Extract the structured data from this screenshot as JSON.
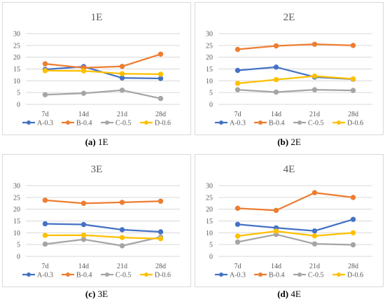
{
  "chart_data": [
    {
      "type": "line",
      "title": "1E",
      "caption_letter": "(a)",
      "caption_text": " 1E",
      "categories": [
        "7d",
        "14d",
        "21d",
        "28d"
      ],
      "ylim": [
        0,
        30
      ],
      "yticks": [
        "0",
        "5",
        "10",
        "15",
        "20",
        "25",
        "30"
      ],
      "grid": true,
      "legend_position": "bottom",
      "series": [
        {
          "name": "A-0.3",
          "color": "#4472C4",
          "values": [
            14.8,
            16.0,
            11.2,
            11.0
          ]
        },
        {
          "name": "B-0.4",
          "color": "#ED7D31",
          "values": [
            17.2,
            15.5,
            16.1,
            21.3
          ]
        },
        {
          "name": "C-0.5",
          "color": "#A5A5A5",
          "values": [
            4.1,
            4.7,
            6.0,
            2.5
          ]
        },
        {
          "name": "D-0.6",
          "color": "#FFC000",
          "values": [
            14.3,
            14.2,
            13.0,
            12.8
          ]
        }
      ]
    },
    {
      "type": "line",
      "title": "2E",
      "caption_letter": "(b)",
      "caption_text": " 2E",
      "categories": [
        "7d",
        "14d",
        "21d",
        "28d"
      ],
      "ylim": [
        0,
        30
      ],
      "yticks": [
        "0",
        "5",
        "10",
        "15",
        "20",
        "25",
        "30"
      ],
      "grid": true,
      "legend_position": "bottom",
      "series": [
        {
          "name": "A-0.3",
          "color": "#4472C4",
          "values": [
            14.4,
            15.8,
            11.6,
            10.7
          ]
        },
        {
          "name": "B-0.4",
          "color": "#ED7D31",
          "values": [
            23.3,
            24.8,
            25.5,
            25.0
          ]
        },
        {
          "name": "C-0.5",
          "color": "#A5A5A5",
          "values": [
            6.2,
            5.2,
            6.2,
            5.9
          ]
        },
        {
          "name": "D-0.6",
          "color": "#FFC000",
          "values": [
            8.9,
            10.5,
            12.0,
            10.8
          ]
        }
      ]
    },
    {
      "type": "line",
      "title": "3E",
      "caption_letter": "(c)",
      "caption_text": " 3E",
      "categories": [
        "7d",
        "14d",
        "21d",
        "28d"
      ],
      "ylim": [
        0,
        30
      ],
      "yticks": [
        "0",
        "5",
        "10",
        "15",
        "20",
        "25",
        "30"
      ],
      "grid": true,
      "legend_position": "bottom",
      "series": [
        {
          "name": "A-0.3",
          "color": "#4472C4",
          "values": [
            13.8,
            13.5,
            11.3,
            10.4
          ]
        },
        {
          "name": "B-0.4",
          "color": "#ED7D31",
          "values": [
            23.8,
            22.5,
            22.9,
            23.4
          ]
        },
        {
          "name": "C-0.5",
          "color": "#A5A5A5",
          "values": [
            5.2,
            7.2,
            4.5,
            8.2
          ]
        },
        {
          "name": "D-0.6",
          "color": "#FFC000",
          "values": [
            8.9,
            9.0,
            8.0,
            7.5
          ]
        }
      ]
    },
    {
      "type": "line",
      "title": "4E",
      "caption_letter": "(d)",
      "caption_text": " 4E",
      "categories": [
        "7d",
        "14d",
        "21d",
        "28d"
      ],
      "ylim": [
        0,
        30
      ],
      "yticks": [
        "0",
        "5",
        "10",
        "15",
        "20",
        "25",
        "30"
      ],
      "grid": true,
      "legend_position": "bottom",
      "series": [
        {
          "name": "A-0.3",
          "color": "#4472C4",
          "values": [
            13.6,
            12.1,
            10.8,
            15.7
          ]
        },
        {
          "name": "B-0.4",
          "color": "#ED7D31",
          "values": [
            20.4,
            19.5,
            27.0,
            25.0
          ]
        },
        {
          "name": "C-0.5",
          "color": "#A5A5A5",
          "values": [
            6.1,
            9.3,
            5.3,
            4.9
          ]
        },
        {
          "name": "D-0.6",
          "color": "#FFC000",
          "values": [
            8.6,
            10.7,
            8.7,
            10.0
          ]
        }
      ]
    }
  ],
  "style": {
    "frame_color": "#D9D9D9",
    "grid_color": "#D9D9D9",
    "text_color": "#595959"
  }
}
